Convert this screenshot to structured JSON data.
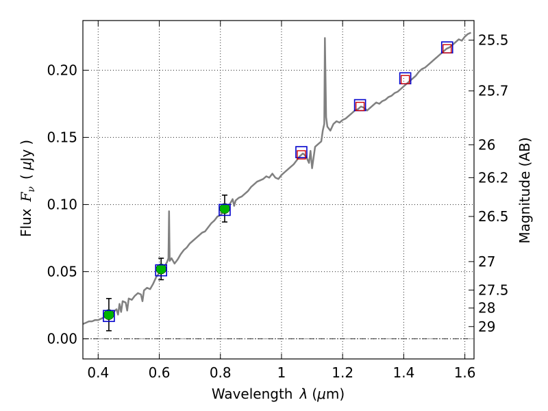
{
  "chart_data": {
    "type": "scatter",
    "x_axis": {
      "label_prefix": "Wavelength",
      "label_symbol": "λ",
      "label_units_open": "(",
      "label_units_mu": "μ",
      "label_units_rest": "m)",
      "range": [
        0.35,
        1.63
      ],
      "ticks": [
        0.4,
        0.6,
        0.8,
        1.0,
        1.2,
        1.4,
        1.6
      ],
      "tick_labels": [
        "0.4",
        "0.6",
        "0.8",
        "1",
        "1.2",
        "1.4",
        "1.6"
      ]
    },
    "y_axis": {
      "label_prefix": "Flux",
      "label_symbol": "F",
      "label_subscript": "ν",
      "label_units_open": "(",
      "label_units_mu": "μ",
      "label_units_rest": "Jy",
      "label_units_close": ")",
      "range": [
        -0.015,
        0.237
      ],
      "ticks": [
        0.0,
        0.05,
        0.1,
        0.15,
        0.2
      ],
      "tick_labels": [
        "0.00",
        "0.05",
        "0.10",
        "0.15",
        "0.20"
      ]
    },
    "y2_axis": {
      "label": "Magnitude (AB)",
      "ticks": [
        {
          "flux": 0.2224,
          "label": "25.5"
        },
        {
          "flux": 0.1846,
          "label": "25.7"
        },
        {
          "flux": 0.1445,
          "label": "26"
        },
        {
          "flux": 0.12,
          "label": "26.2"
        },
        {
          "flux": 0.0911,
          "label": "26.5"
        },
        {
          "flux": 0.0575,
          "label": "27"
        },
        {
          "flux": 0.0363,
          "label": "27.5"
        },
        {
          "flux": 0.0229,
          "label": "28"
        },
        {
          "flux": 0.0091,
          "label": "29"
        }
      ]
    },
    "zero_line": 0.0,
    "grid": true,
    "colors": {
      "spectrum": "#808080",
      "photometry_fill": "#00b400",
      "model_box": "#0000cc",
      "nir_box": "#cc0000",
      "errorbar": "#000000"
    },
    "series": [
      {
        "kind": "line",
        "points": [
          [
            0.35,
            0.011
          ],
          [
            0.36,
            0.012
          ],
          [
            0.37,
            0.013
          ],
          [
            0.38,
            0.013
          ],
          [
            0.39,
            0.014
          ],
          [
            0.4,
            0.014
          ],
          [
            0.41,
            0.015
          ],
          [
            0.42,
            0.016
          ],
          [
            0.43,
            0.017
          ],
          [
            0.44,
            0.018
          ],
          [
            0.45,
            0.02
          ],
          [
            0.46,
            0.022
          ],
          [
            0.465,
            0.018
          ],
          [
            0.47,
            0.026
          ],
          [
            0.475,
            0.02
          ],
          [
            0.48,
            0.028
          ],
          [
            0.49,
            0.027
          ],
          [
            0.495,
            0.021
          ],
          [
            0.5,
            0.03
          ],
          [
            0.51,
            0.029
          ],
          [
            0.52,
            0.032
          ],
          [
            0.53,
            0.034
          ],
          [
            0.54,
            0.033
          ],
          [
            0.545,
            0.028
          ],
          [
            0.55,
            0.036
          ],
          [
            0.56,
            0.038
          ],
          [
            0.57,
            0.037
          ],
          [
            0.58,
            0.041
          ],
          [
            0.59,
            0.046
          ],
          [
            0.6,
            0.049
          ],
          [
            0.61,
            0.051
          ],
          [
            0.62,
            0.055
          ],
          [
            0.625,
            0.057
          ],
          [
            0.63,
            0.06
          ],
          [
            0.632,
            0.095
          ],
          [
            0.634,
            0.058
          ],
          [
            0.64,
            0.06
          ],
          [
            0.65,
            0.056
          ],
          [
            0.66,
            0.059
          ],
          [
            0.67,
            0.063
          ],
          [
            0.68,
            0.066
          ],
          [
            0.69,
            0.068
          ],
          [
            0.7,
            0.071
          ],
          [
            0.71,
            0.073
          ],
          [
            0.72,
            0.075
          ],
          [
            0.73,
            0.077
          ],
          [
            0.74,
            0.079
          ],
          [
            0.75,
            0.08
          ],
          [
            0.76,
            0.083
          ],
          [
            0.77,
            0.086
          ],
          [
            0.78,
            0.088
          ],
          [
            0.79,
            0.091
          ],
          [
            0.8,
            0.092
          ],
          [
            0.81,
            0.095
          ],
          [
            0.82,
            0.098
          ],
          [
            0.83,
            0.1
          ],
          [
            0.84,
            0.104
          ],
          [
            0.845,
            0.099
          ],
          [
            0.85,
            0.103
          ],
          [
            0.86,
            0.105
          ],
          [
            0.87,
            0.106
          ],
          [
            0.88,
            0.108
          ],
          [
            0.89,
            0.11
          ],
          [
            0.9,
            0.113
          ],
          [
            0.91,
            0.115
          ],
          [
            0.92,
            0.117
          ],
          [
            0.93,
            0.118
          ],
          [
            0.94,
            0.119
          ],
          [
            0.95,
            0.121
          ],
          [
            0.96,
            0.12
          ],
          [
            0.97,
            0.123
          ],
          [
            0.98,
            0.12
          ],
          [
            0.99,
            0.119
          ],
          [
            1.0,
            0.122
          ],
          [
            1.01,
            0.124
          ],
          [
            1.02,
            0.126
          ],
          [
            1.03,
            0.128
          ],
          [
            1.04,
            0.13
          ],
          [
            1.05,
            0.133
          ],
          [
            1.06,
            0.136
          ],
          [
            1.07,
            0.138
          ],
          [
            1.08,
            0.136
          ],
          [
            1.09,
            0.131
          ],
          [
            1.095,
            0.14
          ],
          [
            1.1,
            0.127
          ],
          [
            1.11,
            0.143
          ],
          [
            1.12,
            0.145
          ],
          [
            1.13,
            0.147
          ],
          [
            1.135,
            0.155
          ],
          [
            1.14,
            0.16
          ],
          [
            1.142,
            0.224
          ],
          [
            1.146,
            0.165
          ],
          [
            1.15,
            0.158
          ],
          [
            1.16,
            0.155
          ],
          [
            1.17,
            0.16
          ],
          [
            1.18,
            0.162
          ],
          [
            1.19,
            0.161
          ],
          [
            1.2,
            0.163
          ],
          [
            1.21,
            0.164
          ],
          [
            1.22,
            0.166
          ],
          [
            1.23,
            0.168
          ],
          [
            1.24,
            0.17
          ],
          [
            1.25,
            0.171
          ],
          [
            1.26,
            0.173
          ],
          [
            1.27,
            0.172
          ],
          [
            1.28,
            0.17
          ],
          [
            1.29,
            0.172
          ],
          [
            1.3,
            0.174
          ],
          [
            1.31,
            0.176
          ],
          [
            1.32,
            0.175
          ],
          [
            1.33,
            0.177
          ],
          [
            1.34,
            0.178
          ],
          [
            1.35,
            0.18
          ],
          [
            1.36,
            0.181
          ],
          [
            1.37,
            0.183
          ],
          [
            1.38,
            0.184
          ],
          [
            1.39,
            0.186
          ],
          [
            1.4,
            0.188
          ],
          [
            1.41,
            0.19
          ],
          [
            1.42,
            0.192
          ],
          [
            1.43,
            0.194
          ],
          [
            1.44,
            0.196
          ],
          [
            1.45,
            0.199
          ],
          [
            1.46,
            0.201
          ],
          [
            1.47,
            0.202
          ],
          [
            1.48,
            0.204
          ],
          [
            1.49,
            0.206
          ],
          [
            1.5,
            0.208
          ],
          [
            1.51,
            0.21
          ],
          [
            1.52,
            0.212
          ],
          [
            1.53,
            0.214
          ],
          [
            1.54,
            0.216
          ],
          [
            1.55,
            0.217
          ],
          [
            1.56,
            0.219
          ],
          [
            1.57,
            0.221
          ],
          [
            1.58,
            0.223
          ],
          [
            1.59,
            0.222
          ],
          [
            1.6,
            0.225
          ],
          [
            1.61,
            0.227
          ],
          [
            1.62,
            0.228
          ]
        ]
      },
      {
        "kind": "photometry",
        "points": [
          {
            "x": 0.435,
            "y": 0.018,
            "yerr": 0.012
          },
          {
            "x": 0.606,
            "y": 0.052,
            "yerr": 0.008
          },
          {
            "x": 0.814,
            "y": 0.097,
            "yerr": 0.01
          }
        ]
      },
      {
        "kind": "model_boxes",
        "points": [
          {
            "x": 0.435,
            "y": 0.017
          },
          {
            "x": 0.606,
            "y": 0.051
          },
          {
            "x": 0.814,
            "y": 0.096
          },
          {
            "x": 1.065,
            "y": 0.139
          },
          {
            "x": 1.257,
            "y": 0.174
          },
          {
            "x": 1.405,
            "y": 0.194
          },
          {
            "x": 1.542,
            "y": 0.217
          }
        ]
      },
      {
        "kind": "nir_boxes",
        "points": [
          {
            "x": 1.065,
            "y": 0.137
          },
          {
            "x": 1.257,
            "y": 0.173
          },
          {
            "x": 1.405,
            "y": 0.193
          },
          {
            "x": 1.542,
            "y": 0.216
          }
        ]
      }
    ]
  }
}
